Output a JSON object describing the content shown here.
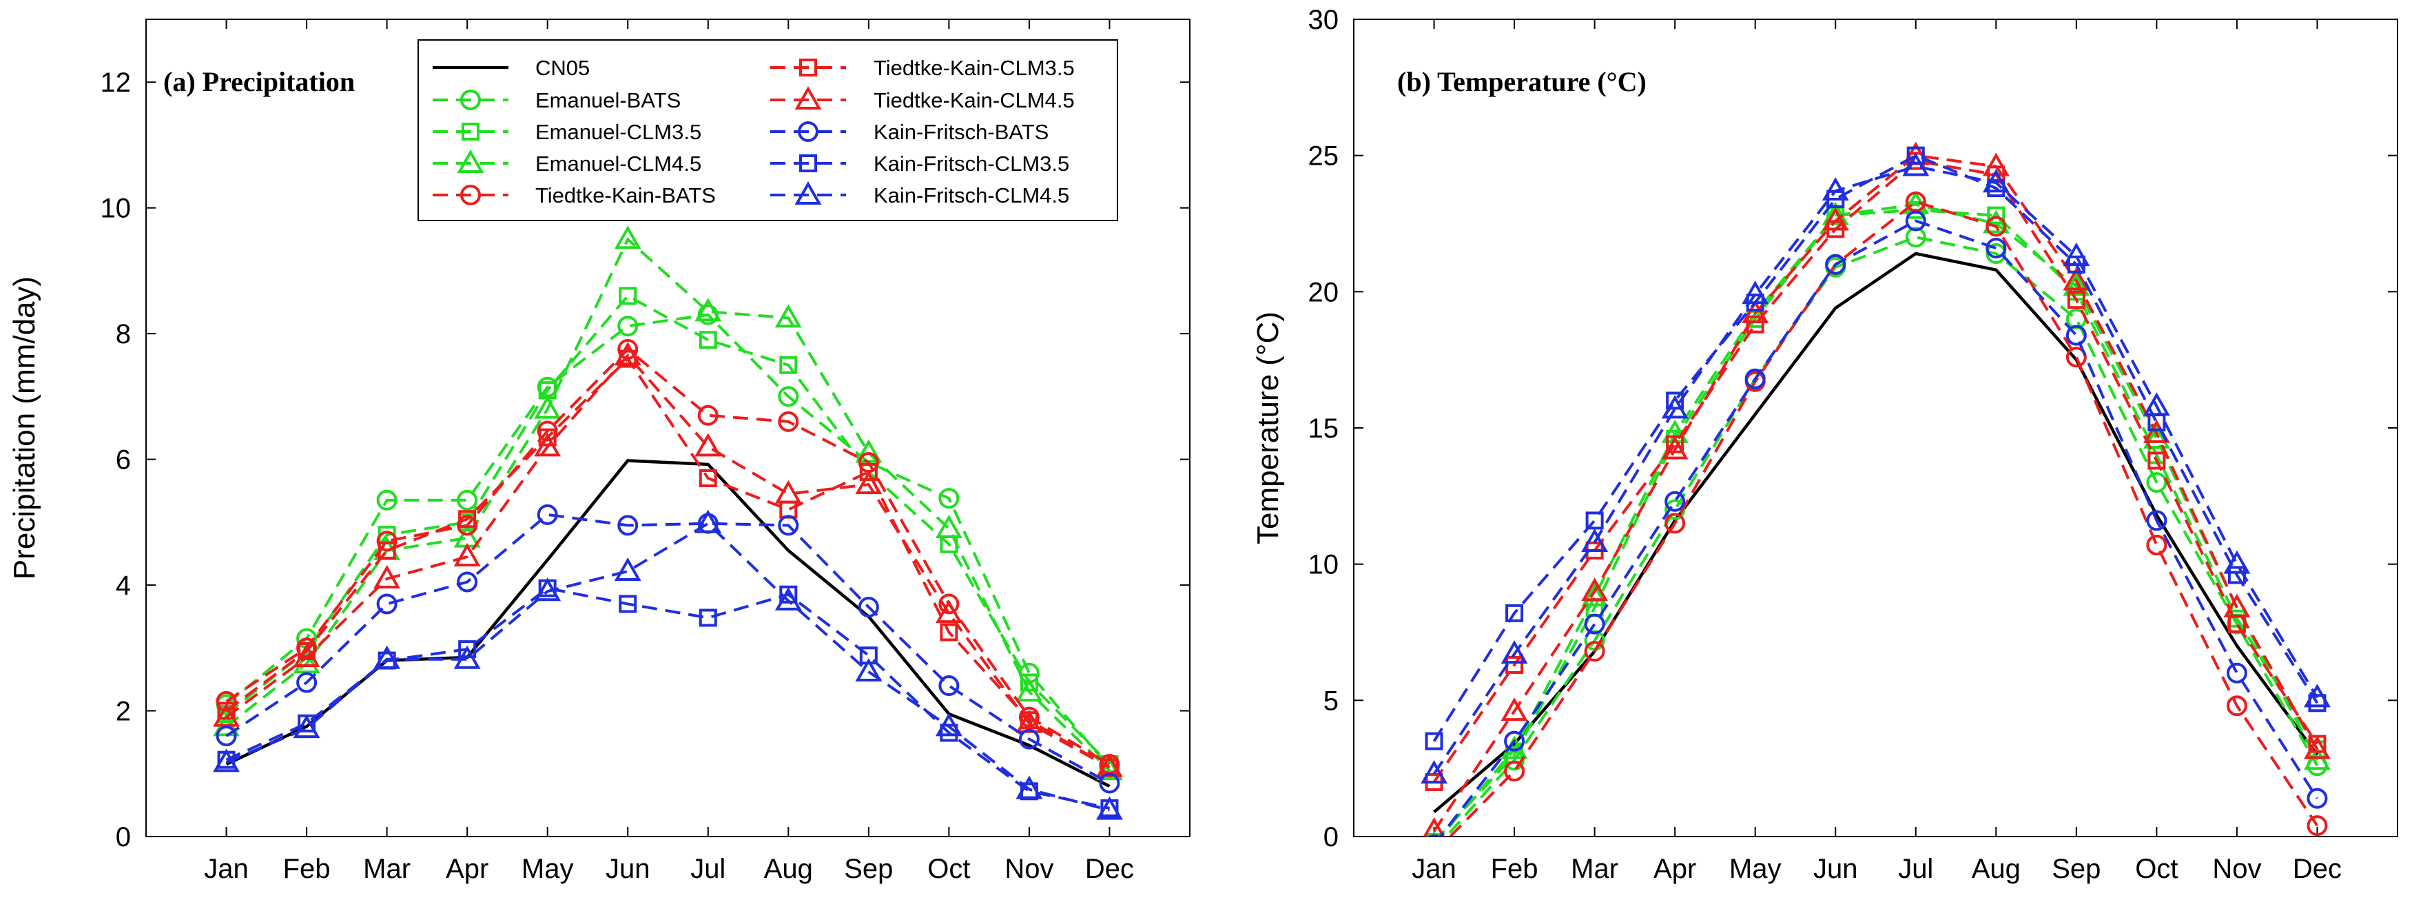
{
  "colors": {
    "CN05": "#000000",
    "Emanuel": "#22dd22",
    "Tiedtke": "#ee1c1c",
    "KainFritsch": "#1f2fe0"
  },
  "months": [
    "Jan",
    "Feb",
    "Mar",
    "Apr",
    "May",
    "Jun",
    "Jul",
    "Aug",
    "Sep",
    "Oct",
    "Nov",
    "Dec"
  ],
  "chart_data": [
    {
      "type": "line",
      "title": "(a) Precipitation",
      "xlabel": "",
      "ylabel": "Precipitation (mm/day)",
      "ylim": [
        0,
        13
      ],
      "yticks": [
        0,
        2,
        4,
        6,
        8,
        10,
        12
      ],
      "grid": false,
      "legend": "top-inside",
      "series": [
        {
          "name": "CN05",
          "color": "#000000",
          "marker": "none",
          "dashed": false,
          "values": [
            1.15,
            1.75,
            2.8,
            2.85,
            4.4,
            5.98,
            5.92,
            4.55,
            3.5,
            1.95,
            1.45,
            0.8
          ]
        },
        {
          "name": "Emanuel-BATS",
          "color": "#22dd22",
          "marker": "circle",
          "dashed": true,
          "values": [
            2.1,
            3.15,
            5.35,
            5.35,
            7.15,
            8.12,
            8.3,
            7.0,
            5.95,
            5.38,
            2.6,
            1.1
          ]
        },
        {
          "name": "Emanuel-CLM3.5",
          "color": "#22dd22",
          "marker": "square",
          "dashed": true,
          "values": [
            1.95,
            2.95,
            4.8,
            5.0,
            7.1,
            8.6,
            7.9,
            7.5,
            5.8,
            4.65,
            2.45,
            1.15
          ]
        },
        {
          "name": "Emanuel-CLM4.5",
          "color": "#22dd22",
          "marker": "triangle",
          "dashed": true,
          "values": [
            1.75,
            2.75,
            4.55,
            4.75,
            6.8,
            9.5,
            8.35,
            8.25,
            6.1,
            4.9,
            2.3,
            1.05
          ]
        },
        {
          "name": "Tiedtke-Kain-BATS",
          "color": "#ee1c1c",
          "marker": "circle",
          "dashed": true,
          "values": [
            2.15,
            3.0,
            4.7,
            4.95,
            6.45,
            7.75,
            6.7,
            6.6,
            5.95,
            3.7,
            1.9,
            1.15
          ]
        },
        {
          "name": "Tiedtke-Kain-CLM3.5",
          "color": "#ee1c1c",
          "marker": "square",
          "dashed": true,
          "values": [
            2.0,
            2.95,
            4.55,
            5.05,
            6.35,
            7.6,
            5.7,
            5.2,
            5.8,
            3.25,
            1.85,
            1.1
          ]
        },
        {
          "name": "Tiedtke-Kain-CLM4.5",
          "color": "#ee1c1c",
          "marker": "triangle",
          "dashed": true,
          "values": [
            1.9,
            2.85,
            4.1,
            4.45,
            6.2,
            7.65,
            6.2,
            5.45,
            5.6,
            3.55,
            1.8,
            1.1
          ]
        },
        {
          "name": "Kain-Fritsch-BATS",
          "color": "#1f2fe0",
          "marker": "circle",
          "dashed": true,
          "values": [
            1.6,
            2.45,
            3.7,
            4.05,
            5.12,
            4.95,
            4.98,
            4.95,
            3.65,
            2.4,
            1.55,
            0.85
          ]
        },
        {
          "name": "Kain-Fritsch-CLM3.5",
          "color": "#1f2fe0",
          "marker": "square",
          "dashed": true,
          "values": [
            1.22,
            1.8,
            2.8,
            2.98,
            3.95,
            3.7,
            3.48,
            3.85,
            2.88,
            1.65,
            0.72,
            0.45
          ]
        },
        {
          "name": "Kain-Fritsch-CLM4.5",
          "color": "#1f2fe0",
          "marker": "triangle",
          "dashed": true,
          "values": [
            1.18,
            1.72,
            2.82,
            2.82,
            3.9,
            4.22,
            4.98,
            3.75,
            2.62,
            1.75,
            0.75,
            0.42
          ]
        }
      ]
    },
    {
      "type": "line",
      "title": "(b) Temperature (°C)",
      "xlabel": "",
      "ylabel": "Temperature (°C)",
      "ylim": [
        0,
        30
      ],
      "yticks": [
        0,
        5,
        10,
        15,
        20,
        25,
        30
      ],
      "grid": false,
      "series": [
        {
          "name": "CN05",
          "color": "#000000",
          "marker": "none",
          "dashed": false,
          "values": [
            0.9,
            3.4,
            6.8,
            11.6,
            15.5,
            19.4,
            21.4,
            20.8,
            17.5,
            11.8,
            7.0,
            3.0
          ]
        },
        {
          "name": "Emanuel-BATS",
          "color": "#22dd22",
          "marker": "circle",
          "dashed": true,
          "values": [
            -0.5,
            2.8,
            7.2,
            12.0,
            16.8,
            20.9,
            22.0,
            21.4,
            19.0,
            13.0,
            7.8,
            2.6
          ]
        },
        {
          "name": "Emanuel-CLM3.5",
          "color": "#22dd22",
          "marker": "square",
          "dashed": true,
          "values": [
            -0.2,
            3.0,
            8.4,
            14.6,
            19.0,
            22.8,
            23.0,
            22.8,
            20.0,
            14.0,
            8.0,
            3.2
          ]
        },
        {
          "name": "Emanuel-CLM4.5",
          "color": "#22dd22",
          "marker": "triangle",
          "dashed": true,
          "values": [
            -0.3,
            3.2,
            8.8,
            14.8,
            19.2,
            22.8,
            23.2,
            22.5,
            20.2,
            14.6,
            8.4,
            2.8
          ]
        },
        {
          "name": "Tiedtke-Kain-BATS",
          "color": "#ee1c1c",
          "marker": "circle",
          "dashed": true,
          "values": [
            -0.6,
            2.4,
            6.8,
            11.5,
            16.7,
            21.0,
            23.3,
            22.4,
            17.6,
            10.7,
            4.8,
            0.4
          ]
        },
        {
          "name": "Tiedtke-Kain-CLM3.5",
          "color": "#ee1c1c",
          "marker": "square",
          "dashed": true,
          "values": [
            2.0,
            6.3,
            10.5,
            14.4,
            18.8,
            22.3,
            24.8,
            24.3,
            19.7,
            13.8,
            7.8,
            3.4
          ]
        },
        {
          "name": "Tiedtke-Kain-CLM4.5",
          "color": "#ee1c1c",
          "marker": "triangle",
          "dashed": true,
          "values": [
            0.2,
            4.6,
            9.0,
            14.2,
            19.2,
            22.6,
            25.0,
            24.6,
            20.4,
            14.8,
            8.4,
            3.2
          ]
        },
        {
          "name": "Kain-Fritsch-BATS",
          "color": "#1f2fe0",
          "marker": "circle",
          "dashed": true,
          "values": [
            -0.3,
            3.5,
            7.8,
            12.3,
            16.8,
            21.0,
            22.6,
            21.6,
            18.4,
            11.6,
            6.0,
            1.4
          ]
        },
        {
          "name": "Kain-Fritsch-CLM3.5",
          "color": "#1f2fe0",
          "marker": "square",
          "dashed": true,
          "values": [
            3.5,
            8.2,
            11.6,
            16.0,
            19.6,
            23.4,
            25.0,
            23.8,
            21.0,
            15.2,
            9.6,
            4.9
          ]
        },
        {
          "name": "Kain-Fritsch-CLM4.5",
          "color": "#1f2fe0",
          "marker": "triangle",
          "dashed": true,
          "values": [
            2.3,
            6.7,
            10.8,
            15.7,
            19.9,
            23.7,
            24.6,
            24.0,
            21.3,
            15.8,
            10.0,
            5.1
          ]
        }
      ]
    }
  ]
}
